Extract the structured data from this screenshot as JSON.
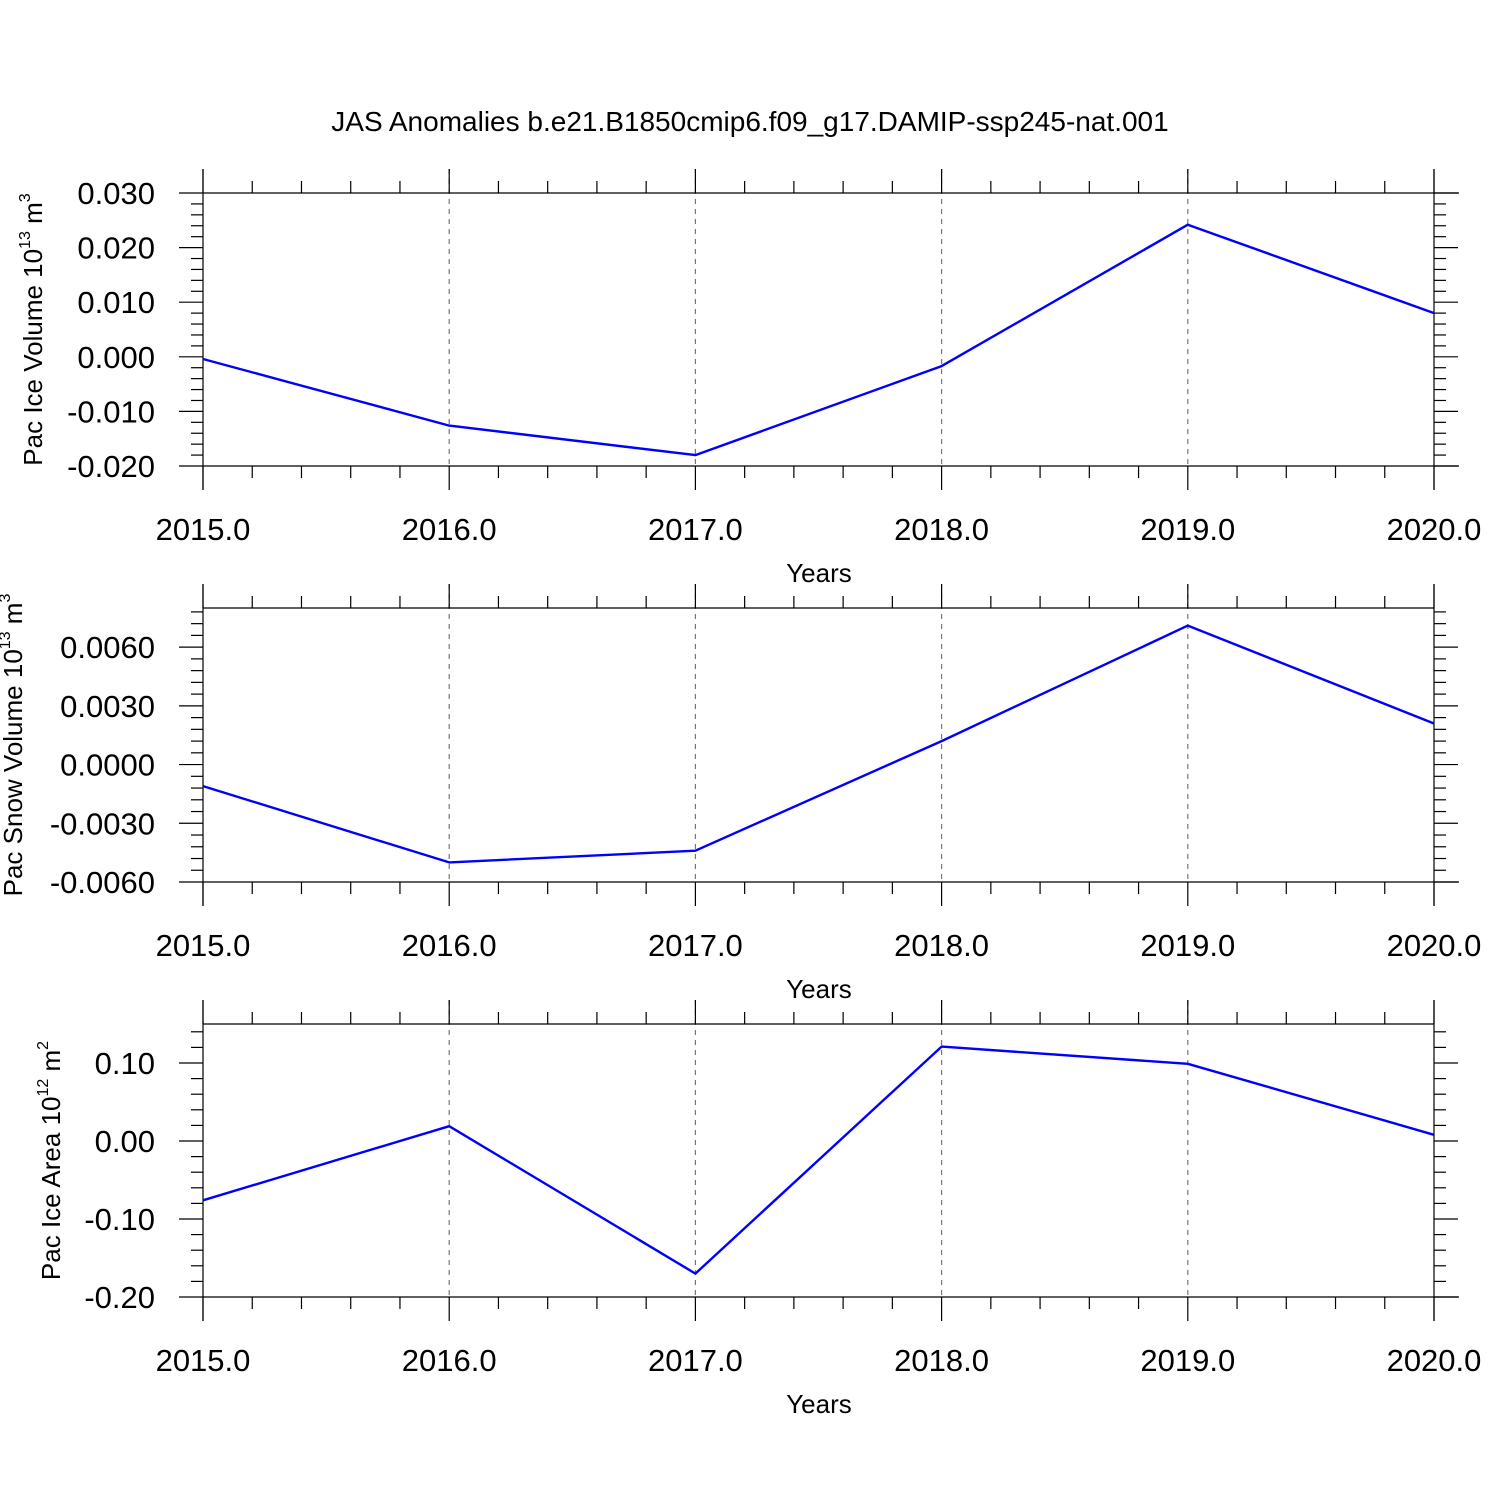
{
  "title": "JAS Anomalies b.e21.B1850cmip6.f09_g17.DAMIP-ssp245-nat.001",
  "chart_data": [
    {
      "type": "line",
      "x": [
        2015,
        2016,
        2017,
        2018,
        2019,
        2020
      ],
      "xlim": [
        2015,
        2020
      ],
      "xticks": [
        "2015.0",
        "2016.0",
        "2017.0",
        "2018.0",
        "2019.0",
        "2020.0"
      ],
      "xlabel": "Years",
      "ylabel": {
        "main": "Pac Ice Volume 10",
        "exp": "13",
        "unit": " m",
        "unit_exp": "3"
      },
      "ylim": [
        -0.02,
        0.03
      ],
      "yticks": [
        "-0.020",
        "-0.010",
        "0.000",
        "0.010",
        "0.020",
        "0.030"
      ],
      "series": [
        {
          "values": [
            -0.0004,
            -0.0126,
            -0.018,
            -0.0017,
            0.0242,
            0.008
          ],
          "color": "#0000ff"
        }
      ],
      "grid": "vertical dashed at major x ticks"
    },
    {
      "type": "line",
      "x": [
        2015,
        2016,
        2017,
        2018,
        2019,
        2020
      ],
      "xlim": [
        2015,
        2020
      ],
      "xticks": [
        "2015.0",
        "2016.0",
        "2017.0",
        "2018.0",
        "2019.0",
        "2020.0"
      ],
      "xlabel": "Years",
      "ylabel": {
        "main": "Pac Snow Volume 10",
        "exp": "13",
        "unit": " m",
        "unit_exp": "3"
      },
      "ylim": [
        -0.006,
        0.008
      ],
      "yticks": [
        "-0.0060",
        "-0.0030",
        "0.0000",
        "0.0030",
        "0.0060"
      ],
      "series": [
        {
          "values": [
            -0.0011,
            -0.005,
            -0.0044,
            0.0012,
            0.0071,
            0.0021
          ],
          "color": "#0000ff"
        }
      ],
      "grid": "vertical dashed at major x ticks"
    },
    {
      "type": "line",
      "x": [
        2015,
        2016,
        2017,
        2018,
        2019,
        2020
      ],
      "xlim": [
        2015,
        2020
      ],
      "xticks": [
        "2015.0",
        "2016.0",
        "2017.0",
        "2018.0",
        "2019.0",
        "2020.0"
      ],
      "xlabel": "Years",
      "ylabel": {
        "main": "Pac Ice Area 10",
        "exp": "12",
        "unit": " m",
        "unit_exp": "2"
      },
      "ylim": [
        -0.2,
        0.15
      ],
      "yticks": [
        "-0.20",
        "-0.10",
        "0.00",
        "0.10"
      ],
      "series": [
        {
          "values": [
            -0.076,
            0.019,
            -0.17,
            0.121,
            0.099,
            0.008
          ],
          "color": "#0000ff"
        }
      ],
      "grid": "vertical dashed at major x ticks"
    }
  ]
}
